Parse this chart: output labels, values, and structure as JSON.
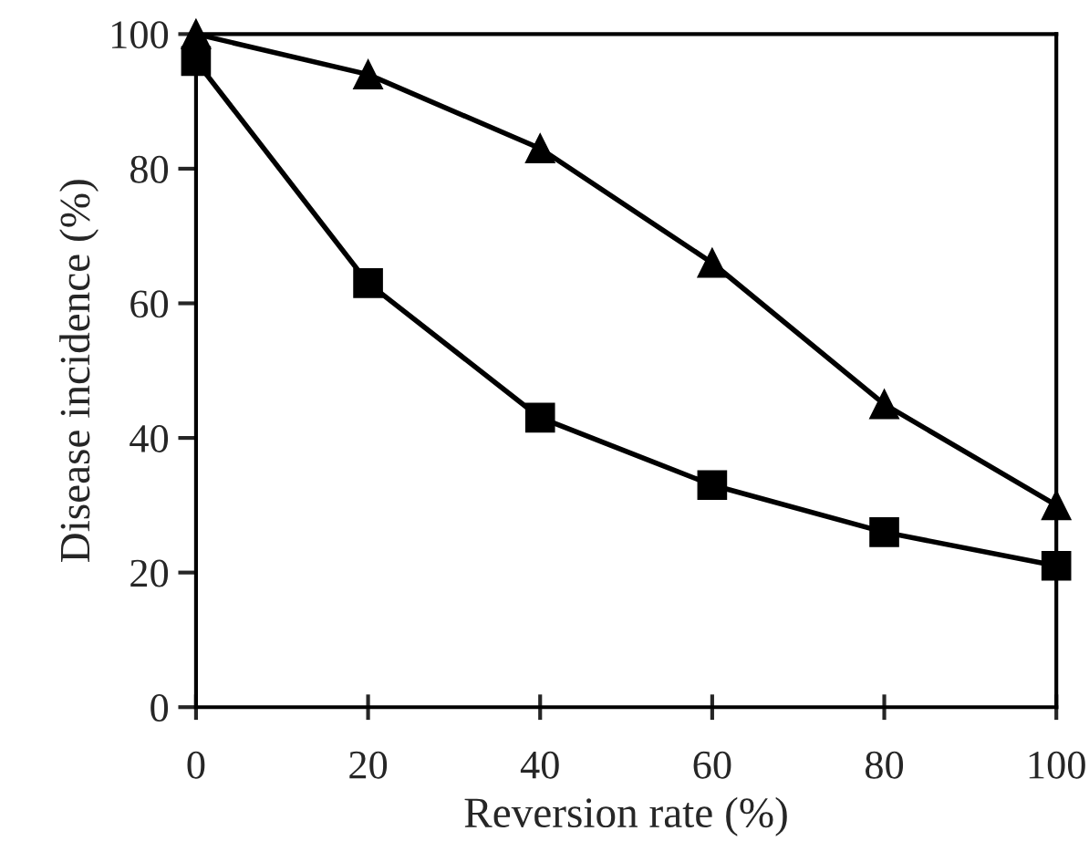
{
  "chart_data": {
    "type": "line",
    "xlabel": "Reversion rate (%)",
    "ylabel": "Disease incidence (%)",
    "x": [
      0,
      20,
      40,
      60,
      80,
      100
    ],
    "series": [
      {
        "color": "#000000",
        "marker": "triangle",
        "values": [
          100,
          94,
          83,
          66,
          45,
          30
        ]
      },
      {
        "color": "#000000",
        "marker": "square",
        "values": [
          96,
          63,
          43,
          33,
          26,
          21
        ]
      }
    ],
    "xlim": [
      0,
      100
    ],
    "ylim": [
      0,
      100
    ],
    "xticks": [
      0,
      20,
      40,
      60,
      80,
      100
    ],
    "yticks": [
      0,
      20,
      40,
      60,
      80,
      100
    ],
    "grid": false,
    "legend": false,
    "line_style": "solid"
  }
}
